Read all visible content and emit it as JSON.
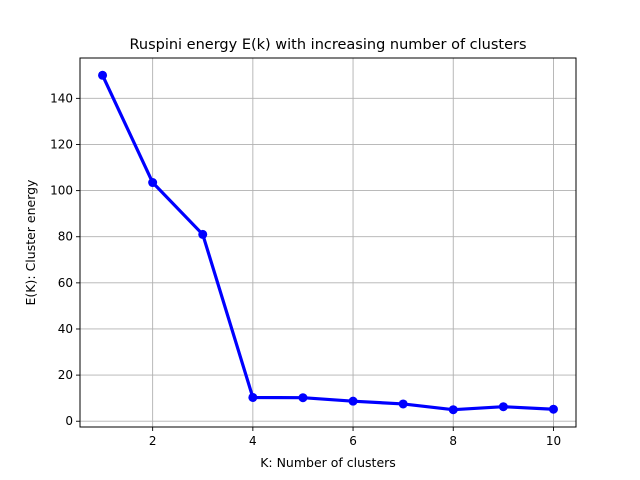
{
  "chart_data": {
    "type": "line",
    "title": "Ruspini energy E(k) with increasing number of clusters",
    "xlabel": "K: Number of clusters",
    "ylabel": "E(K): Cluster energy",
    "xlim": [
      0.55,
      10.45
    ],
    "ylim": [
      -2.5,
      157.5
    ],
    "xticks": [
      2,
      4,
      6,
      8,
      10
    ],
    "yticks": [
      0,
      20,
      40,
      60,
      80,
      100,
      120,
      140
    ],
    "grid": true,
    "series": [
      {
        "color": "#0000ff",
        "marker": "circle",
        "x": [
          1,
          2,
          3,
          4,
          5,
          6,
          7,
          8,
          9,
          10
        ],
        "y": [
          150.0,
          103.5,
          81.0,
          10.3,
          10.2,
          8.7,
          7.5,
          5.0,
          6.3,
          5.2
        ]
      }
    ]
  }
}
